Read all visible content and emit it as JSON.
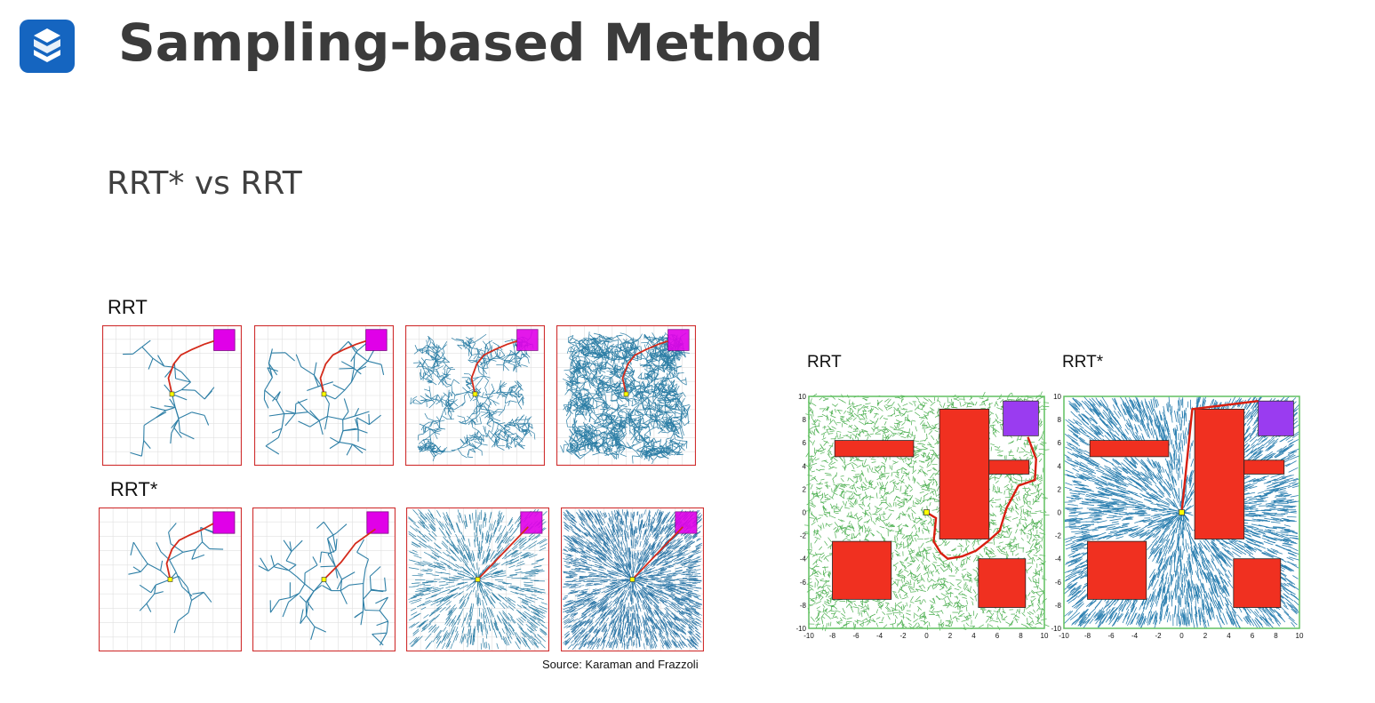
{
  "slide": {
    "title": "Sampling-based Method",
    "subtitle": "RRT* vs RRT",
    "source": "Source: Karaman and Frazzoli"
  },
  "logo": {
    "icon": "company-logo-icon",
    "color": "#1565c0"
  },
  "left_figure": {
    "row_labels": [
      "RRT",
      "RRT*"
    ],
    "panels_per_row": 4,
    "colors": {
      "tree": "#2e7fa6",
      "path": "#d42a1a",
      "goal": "#e000e8",
      "frame": "#d03030",
      "grid": "#e0e0e0"
    }
  },
  "right_figure": {
    "labels": [
      "RRT",
      "RRT*"
    ],
    "axis_ticks": [
      "-10",
      "-8",
      "-6",
      "-4",
      "-2",
      "0",
      "2",
      "4",
      "6",
      "8",
      "10"
    ],
    "colors": {
      "tree_rrt": "#4caf50",
      "tree_rrt_star": "#2b7fb0",
      "obstacle": "#f03020",
      "goal": "#9a3cf0",
      "frame": "#60c060"
    }
  }
}
